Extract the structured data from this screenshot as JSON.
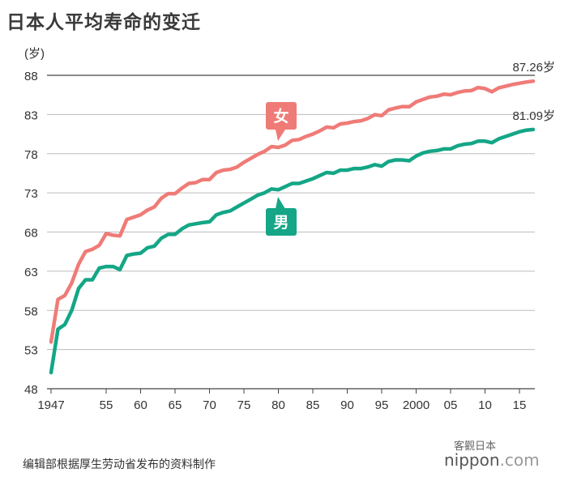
{
  "chart_data": {
    "type": "line",
    "title": "日本人平均寿命的变迁",
    "ylabel": "(岁)",
    "ylim": [
      48,
      88
    ],
    "yticks": [
      48,
      53,
      58,
      63,
      68,
      73,
      78,
      83,
      88
    ],
    "xlim": [
      1947,
      2017
    ],
    "xticks": [
      {
        "value": 1947,
        "label": "1947"
      },
      {
        "value": 1955,
        "label": "55"
      },
      {
        "value": 1960,
        "label": "60"
      },
      {
        "value": 1965,
        "label": "65"
      },
      {
        "value": 1970,
        "label": "70"
      },
      {
        "value": 1975,
        "label": "75"
      },
      {
        "value": 1980,
        "label": "80"
      },
      {
        "value": 1985,
        "label": "85"
      },
      {
        "value": 1990,
        "label": "90"
      },
      {
        "value": 1995,
        "label": "95"
      },
      {
        "value": 2000,
        "label": "2000"
      },
      {
        "value": 2005,
        "label": "05"
      },
      {
        "value": 2010,
        "label": "10"
      },
      {
        "value": 2015,
        "label": "15"
      }
    ],
    "grid": true,
    "series": [
      {
        "name": "女",
        "color": "#ef7b77",
        "end_label": "87.26岁",
        "x": [
          1947,
          1948,
          1949,
          1950,
          1951,
          1952,
          1953,
          1954,
          1955,
          1956,
          1957,
          1958,
          1959,
          1960,
          1961,
          1962,
          1963,
          1964,
          1965,
          1966,
          1967,
          1968,
          1969,
          1970,
          1971,
          1972,
          1973,
          1974,
          1975,
          1976,
          1977,
          1978,
          1979,
          1980,
          1981,
          1982,
          1983,
          1984,
          1985,
          1986,
          1987,
          1988,
          1989,
          1990,
          1991,
          1992,
          1993,
          1994,
          1995,
          1996,
          1997,
          1998,
          1999,
          2000,
          2001,
          2002,
          2003,
          2004,
          2005,
          2006,
          2007,
          2008,
          2009,
          2010,
          2011,
          2012,
          2013,
          2014,
          2015,
          2016,
          2017
        ],
        "values": [
          53.96,
          59.4,
          59.9,
          61.5,
          63.9,
          65.5,
          65.8,
          66.3,
          67.8,
          67.6,
          67.5,
          69.6,
          69.9,
          70.2,
          70.8,
          71.2,
          72.3,
          72.9,
          72.9,
          73.6,
          74.2,
          74.3,
          74.7,
          74.7,
          75.6,
          75.9,
          76.0,
          76.3,
          76.9,
          77.4,
          77.9,
          78.3,
          78.9,
          78.8,
          79.1,
          79.7,
          79.8,
          80.2,
          80.5,
          80.9,
          81.4,
          81.3,
          81.8,
          81.9,
          82.1,
          82.2,
          82.5,
          82.98,
          82.85,
          83.59,
          83.82,
          84.01,
          83.99,
          84.6,
          84.93,
          85.23,
          85.33,
          85.59,
          85.52,
          85.81,
          85.99,
          86.05,
          86.44,
          86.3,
          85.9,
          86.41,
          86.61,
          86.83,
          86.99,
          87.14,
          87.26
        ]
      },
      {
        "name": "男",
        "color": "#14a686",
        "end_label": "81.09岁",
        "x": [
          1947,
          1948,
          1949,
          1950,
          1951,
          1952,
          1953,
          1954,
          1955,
          1956,
          1957,
          1958,
          1959,
          1960,
          1961,
          1962,
          1963,
          1964,
          1965,
          1966,
          1967,
          1968,
          1969,
          1970,
          1971,
          1972,
          1973,
          1974,
          1975,
          1976,
          1977,
          1978,
          1979,
          1980,
          1981,
          1982,
          1983,
          1984,
          1985,
          1986,
          1987,
          1988,
          1989,
          1990,
          1991,
          1992,
          1993,
          1994,
          1995,
          1996,
          1997,
          1998,
          1999,
          2000,
          2001,
          2002,
          2003,
          2004,
          2005,
          2006,
          2007,
          2008,
          2009,
          2010,
          2011,
          2012,
          2013,
          2014,
          2015,
          2016,
          2017
        ],
        "values": [
          50.06,
          55.6,
          56.2,
          58.0,
          60.8,
          61.9,
          61.9,
          63.4,
          63.6,
          63.6,
          63.2,
          65.0,
          65.2,
          65.3,
          66.0,
          66.2,
          67.2,
          67.7,
          67.7,
          68.4,
          68.9,
          69.05,
          69.2,
          69.3,
          70.2,
          70.5,
          70.7,
          71.2,
          71.7,
          72.2,
          72.7,
          73.0,
          73.5,
          73.4,
          73.8,
          74.2,
          74.2,
          74.5,
          74.8,
          75.2,
          75.6,
          75.5,
          75.9,
          75.9,
          76.1,
          76.1,
          76.3,
          76.6,
          76.4,
          77.0,
          77.2,
          77.2,
          77.1,
          77.7,
          78.1,
          78.3,
          78.4,
          78.6,
          78.6,
          79.0,
          79.2,
          79.3,
          79.6,
          79.6,
          79.4,
          79.9,
          80.2,
          80.5,
          80.8,
          81.0,
          81.09
        ]
      }
    ],
    "annotations": [
      {
        "text": "女",
        "color": "#ef7b77"
      },
      {
        "text": "男",
        "color": "#14a686"
      }
    ]
  },
  "footer": {
    "source": "编辑部根据厚生劳动省发布的资料制作",
    "watermark": "客觀日本",
    "brand_a": "nippon",
    "brand_b": ".com"
  }
}
